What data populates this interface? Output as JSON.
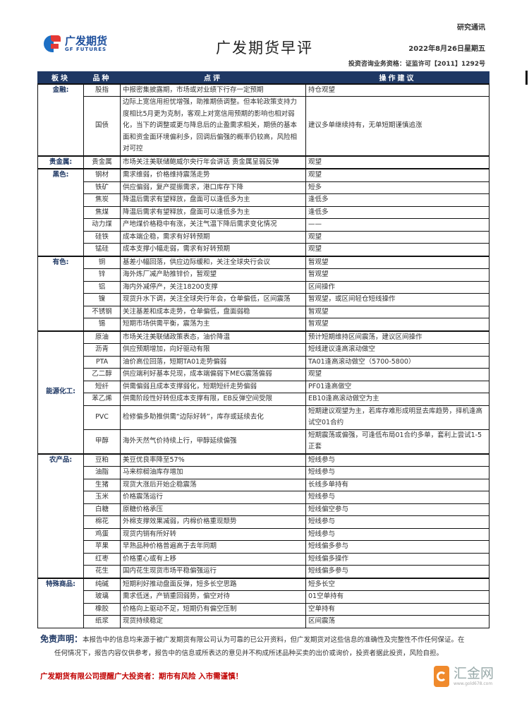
{
  "header": {
    "tag": "研究通讯",
    "logo_cn": "广发期货",
    "logo_en": "GF FUTURES",
    "title": "广发期货早评",
    "date": "2022年8月26日星期五",
    "license": "投资咨询业务资格：证监许可【2011】1292号"
  },
  "table": {
    "columns": [
      "板块",
      "品种",
      "点评",
      "操作建议"
    ],
    "sections": [
      {
        "name": "金融:",
        "rows": [
          {
            "variety": "股指",
            "comment": "中报密集披露期，市场或对业绩下行存一定预期",
            "advice": "持仓观望"
          },
          {
            "variety": "国债",
            "comment": "边际上宽信用担忧增强，助推期债调整。但本轮政策支持力度相比5月更为克制，客观上对宽信用预期的影响也相对弱化，当下的调整或更与降息后的止盈需求相关，期债的基本面和资金面环境偏利多，回调后偏强的概率仍较高，风险相对可控",
            "advice": "建议多单继续持有，无单短期谨慎追涨"
          }
        ]
      },
      {
        "name": "贵金属:",
        "rows": [
          {
            "variety": "贵金属",
            "comment": "市场关注美联储鲍威尔央行年会讲话 贵金属呈弱反弹",
            "advice": "观望"
          }
        ]
      },
      {
        "name": "黑色:",
        "rows": [
          {
            "variety": "钢材",
            "comment": "需求维弱，价格维持震荡走势",
            "advice": "观望"
          },
          {
            "variety": "铁矿",
            "comment": "供应偏弱，复产提振需求，港口库存下降",
            "advice": "短多"
          },
          {
            "variety": "焦炭",
            "comment": "降温后需求有望释放，盘面可以逢低多为主",
            "advice": "逢低多"
          },
          {
            "variety": "焦煤",
            "comment": "降温后需求有望释放，盘面可以逢低多为主",
            "advice": "逢低多"
          },
          {
            "variety": "动力煤",
            "comment": "产地煤价格稳中有涨，关注气温下降后需求变化情况",
            "advice": "——"
          },
          {
            "variety": "硅铁",
            "comment": "成本端企稳，需求有好转预期",
            "advice": "观望"
          },
          {
            "variety": "锰硅",
            "comment": "成本支撑小幅走弱，需求有好转预期",
            "advice": "观望"
          }
        ]
      },
      {
        "name": "有色:",
        "rows": [
          {
            "variety": "铜",
            "comment": "基差小幅回落，供应边际缓和，关注全球央行会议",
            "advice": "暂观望"
          },
          {
            "variety": "锌",
            "comment": "海外炼厂减产助推锌价，暂观望",
            "advice": "暂观望"
          },
          {
            "variety": "铝",
            "comment": "海内外减停产，关注18200支撑",
            "advice": "区间操作"
          },
          {
            "variety": "镍",
            "comment": "现货升水下调，关注全球央行年会，仓单偏低，区间震荡",
            "advice": "暂观望，或区间轻仓短线操作"
          },
          {
            "variety": "不锈钢",
            "comment": "关注基差和成本走势，仓单偏低，盘面弱稳",
            "advice": "暂观望"
          },
          {
            "variety": "锡",
            "comment": "短期市场供需平衡，震荡为主",
            "advice": "暂观望"
          }
        ]
      },
      {
        "name": "能源化工:",
        "mid": true,
        "rows": [
          {
            "variety": "原油",
            "comment": "市场关注美联储政策表态，油价降温",
            "advice": "预计短期维持区间震荡，建议区间操作"
          },
          {
            "variety": "沥青",
            "comment": "供应预期增加，向好驱动有限",
            "advice": "短线建议逢高滚动做空"
          },
          {
            "variety": "PTA",
            "comment": "油价高位回落，短期TA01走势偏弱",
            "advice": "TA01逢高滚动做空（5700-5800）"
          },
          {
            "variety": "乙二醇",
            "comment": "供应端利好基本兑现，成本端偏弱下MEG震荡偏弱",
            "advice": "观望"
          },
          {
            "variety": "短纤",
            "comment": "供需偏弱且成本支撑弱化，短期短纤走势偏弱",
            "advice": "PF01逢高做空"
          },
          {
            "variety": "苯乙烯",
            "comment": "供需阶段性好转但成本支撑有限，EB反弹空间受限",
            "advice": "EB10逢高滚动做空为主"
          },
          {
            "variety": "PVC",
            "comment": "检修偏多助推供需“边际好转”，库存或延续去化",
            "advice": "短期建议观望为主，若库存难形成明显去库趋势，择机逢高试空01合约"
          },
          {
            "variety": "甲醇",
            "comment": "海外天然气价持续上行，甲醇延续偏强",
            "advice": "短期震荡或偏强，可逢低布局01合约多单，套利上尝试1-5正套"
          }
        ]
      },
      {
        "name": "农产品:",
        "rows": [
          {
            "variety": "豆粕",
            "comment": "美豆优良率降至57%",
            "advice": "短线参与"
          },
          {
            "variety": "油脂",
            "comment": "马来棕榈油库存增加",
            "advice": "短线参与"
          },
          {
            "variety": "生猪",
            "comment": "现货大涨后开始企稳震荡",
            "advice": "长线多单持有"
          },
          {
            "variety": "玉米",
            "comment": "价格震荡运行",
            "advice": "短线参与"
          },
          {
            "variety": "白糖",
            "comment": "原糖价格承压",
            "advice": "短线偏空参与"
          },
          {
            "variety": "棉花",
            "comment": "外棉支撑效果减弱，内棉价格重现颓势",
            "advice": "短线参与"
          },
          {
            "variety": "鸡蛋",
            "comment": "现货内销有所好转",
            "advice": "短线参与"
          },
          {
            "variety": "苹果",
            "comment": "早熟品种价格普遍高于去年同期",
            "advice": "短线偏多参与"
          },
          {
            "variety": "红枣",
            "comment": "价格重心或有上移",
            "advice": "短线偏多操作"
          },
          {
            "variety": "花生",
            "comment": "国内花生现货市场平稳偏强运行",
            "advice": "短线偏多参与"
          }
        ]
      },
      {
        "name": "特殊商品:",
        "rows": [
          {
            "variety": "纯碱",
            "comment": "短期利好推动盘面反弹，短多长空思路",
            "advice": "短多长空"
          },
          {
            "variety": "玻璃",
            "comment": "需求低迷，产销重回弱势，偏空对待",
            "advice": "01空单持有"
          },
          {
            "variety": "橡胶",
            "comment": "价格向上驱动不足，短期仍有偏空压制",
            "advice": "空单持有"
          },
          {
            "variety": "纸浆",
            "comment": "现货持续稳定",
            "advice": "区间震荡"
          }
        ]
      }
    ]
  },
  "footer": {
    "disclaimer_label": "免责声明：",
    "disclaimer_line1": "本报告中的信息均来源于被广发期货有限公司认为可靠的已公开资料，但广发期货对这些信息的准确性及完整性不作任何保证。在",
    "disclaimer_line2": "任何情况下，报告内容仅供参考，报告中的信息或所表达的意见并不构成所述品种买卖的出价或询价，投资者据此投资，风险自担。",
    "warning": "广发期货有限公司提醒广大投资者：期市有风险 入市需谨慎！"
  },
  "watermark": {
    "text": "汇金网",
    "url": "www.gold678.com"
  },
  "colors": {
    "header_bg": "#1f3864",
    "warning": "#c00000",
    "watermark": "#f08a2c"
  }
}
